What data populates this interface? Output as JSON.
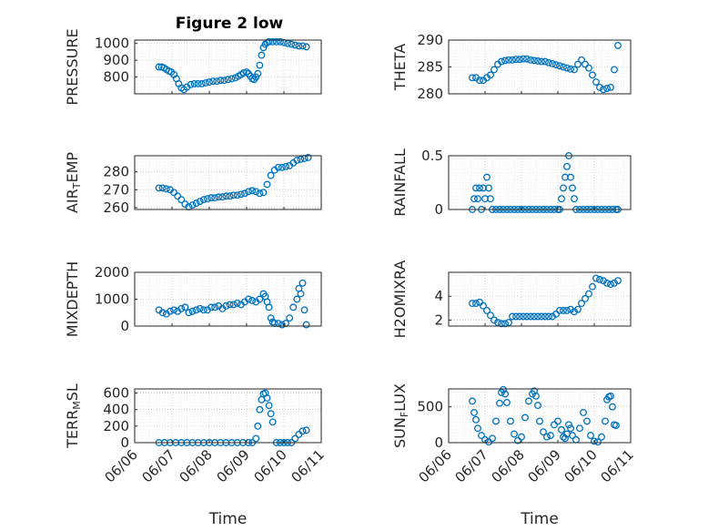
{
  "figure_title": "Figure 2 low",
  "marker_color": "#0072BD",
  "grid": "dotted",
  "chart_data": [
    {
      "type": "scatter",
      "title": "Figure 2 low",
      "ylabel": "PRESSURE",
      "ylim": [
        700,
        1020
      ],
      "yticks": [
        800,
        900,
        1000
      ],
      "xlim": [
        0,
        5
      ],
      "xticks": [
        0,
        1,
        2,
        3,
        4,
        5
      ],
      "xticklabels": [
        "06/06",
        "06/07",
        "06/08",
        "06/09",
        "06/10",
        "06/11"
      ],
      "show_xticklabels": false,
      "x": [
        0.65,
        0.72,
        0.78,
        0.85,
        0.92,
        0.98,
        1.05,
        1.12,
        1.18,
        1.25,
        1.32,
        1.4,
        1.5,
        1.6,
        1.7,
        1.8,
        1.9,
        2.0,
        2.1,
        2.2,
        2.3,
        2.4,
        2.5,
        2.6,
        2.7,
        2.78,
        2.85,
        2.92,
        3.0,
        3.05,
        3.1,
        3.15,
        3.2,
        3.25,
        3.3,
        3.35,
        3.4,
        3.45,
        3.5,
        3.55,
        3.6,
        3.7,
        3.8,
        3.9,
        4.0,
        4.1,
        4.2,
        4.3,
        4.4,
        4.5,
        4.6
      ],
      "y": [
        860,
        860,
        855,
        845,
        835,
        830,
        815,
        790,
        760,
        735,
        725,
        740,
        755,
        760,
        760,
        760,
        765,
        770,
        775,
        775,
        780,
        780,
        785,
        790,
        795,
        805,
        815,
        825,
        830,
        820,
        805,
        790,
        785,
        800,
        820,
        870,
        930,
        975,
        995,
        1005,
        1010,
        1010,
        1010,
        1010,
        1005,
        1000,
        995,
        990,
        985,
        985,
        980
      ]
    },
    {
      "type": "scatter",
      "ylabel": "THETA",
      "ylim": [
        280,
        290
      ],
      "yticks": [
        280,
        285,
        290
      ],
      "xlim": [
        0,
        5
      ],
      "show_xticklabels": false,
      "x": [
        0.65,
        0.75,
        0.85,
        0.95,
        1.05,
        1.15,
        1.25,
        1.35,
        1.45,
        1.55,
        1.65,
        1.75,
        1.85,
        1.95,
        2.05,
        2.15,
        2.25,
        2.35,
        2.45,
        2.55,
        2.65,
        2.75,
        2.85,
        2.95,
        3.05,
        3.15,
        3.25,
        3.35,
        3.45,
        3.55,
        3.65,
        3.75,
        3.85,
        3.95,
        4.05,
        4.15,
        4.25,
        4.35,
        4.45,
        4.55,
        4.65
      ],
      "y": [
        283,
        283,
        282.5,
        282.5,
        283,
        283.5,
        284.5,
        285.5,
        286,
        286.2,
        286.3,
        286.3,
        286.4,
        286.4,
        286.5,
        286.5,
        286.3,
        286.2,
        286.1,
        286,
        286,
        285.8,
        285.6,
        285.4,
        285.2,
        285,
        284.8,
        284.6,
        284.5,
        285.5,
        286.3,
        285.5,
        284.8,
        283.5,
        282.2,
        281.2,
        280.8,
        281,
        281.2,
        284.5,
        289
      ]
    },
    {
      "type": "scatter",
      "ylabel": "AIR_TEMP",
      "ylim": [
        259,
        289
      ],
      "yticks": [
        260,
        270,
        280
      ],
      "xlim": [
        0,
        5
      ],
      "show_xticklabels": false,
      "x": [
        0.65,
        0.75,
        0.85,
        0.95,
        1.05,
        1.15,
        1.25,
        1.35,
        1.45,
        1.55,
        1.65,
        1.75,
        1.85,
        1.95,
        2.05,
        2.15,
        2.25,
        2.35,
        2.45,
        2.55,
        2.65,
        2.75,
        2.85,
        2.95,
        3.05,
        3.15,
        3.25,
        3.35,
        3.45,
        3.55,
        3.65,
        3.75,
        3.85,
        3.95,
        4.05,
        4.15,
        4.25,
        4.35,
        4.45,
        4.55,
        4.65
      ],
      "y": [
        271,
        271,
        270.5,
        270,
        268.5,
        266.5,
        264.5,
        262,
        260.5,
        261.5,
        262.5,
        263.5,
        264.5,
        265,
        265.5,
        265.5,
        266,
        266,
        266.5,
        266.5,
        267,
        267,
        267.5,
        268,
        269,
        269.5,
        269,
        268,
        268.5,
        273,
        278,
        281,
        282.5,
        282.5,
        283,
        283.5,
        285,
        286.5,
        287,
        287.5,
        288
      ]
    },
    {
      "type": "scatter",
      "ylabel": "RAINFALL",
      "ylim": [
        0,
        0.5
      ],
      "yticks": [
        0,
        0.5
      ],
      "xlim": [
        0,
        5
      ],
      "show_xticklabels": false,
      "x": [
        0.65,
        0.7,
        0.75,
        0.8,
        0.85,
        0.9,
        0.95,
        1.0,
        1.05,
        1.1,
        1.15,
        1.2,
        1.3,
        1.4,
        1.5,
        1.6,
        1.7,
        1.8,
        1.9,
        2.0,
        2.1,
        2.2,
        2.3,
        2.4,
        2.5,
        2.6,
        2.7,
        2.8,
        2.9,
        3.0,
        3.05,
        3.1,
        3.15,
        3.2,
        3.25,
        3.3,
        3.35,
        3.4,
        3.45,
        3.5,
        3.6,
        3.7,
        3.8,
        3.9,
        4.0,
        4.1,
        4.2,
        4.3,
        4.4,
        4.5,
        4.6,
        4.65
      ],
      "y": [
        0,
        0.1,
        0.2,
        0.1,
        0.2,
        0,
        0.2,
        0.1,
        0.3,
        0.2,
        0.1,
        0,
        0,
        0,
        0,
        0,
        0,
        0,
        0,
        0,
        0,
        0,
        0,
        0,
        0,
        0,
        0,
        0,
        0,
        0,
        0,
        0.1,
        0.2,
        0.3,
        0.4,
        0.5,
        0.3,
        0.2,
        0.1,
        0,
        0,
        0,
        0,
        0,
        0,
        0,
        0,
        0,
        0,
        0,
        0,
        0
      ]
    },
    {
      "type": "scatter",
      "ylabel": "MIXDEPTH",
      "ylim": [
        0,
        2000
      ],
      "yticks": [
        0,
        1000,
        2000
      ],
      "xlim": [
        0,
        5
      ],
      "show_xticklabels": false,
      "x": [
        0.65,
        0.75,
        0.85,
        0.95,
        1.05,
        1.15,
        1.25,
        1.35,
        1.45,
        1.55,
        1.65,
        1.75,
        1.85,
        1.95,
        2.05,
        2.15,
        2.25,
        2.35,
        2.45,
        2.55,
        2.65,
        2.75,
        2.85,
        2.95,
        3.05,
        3.15,
        3.25,
        3.35,
        3.45,
        3.5,
        3.55,
        3.6,
        3.65,
        3.7,
        3.75,
        3.85,
        3.95,
        4.05,
        4.15,
        4.25,
        4.35,
        4.4,
        4.45,
        4.5,
        4.55,
        4.6
      ],
      "y": [
        600,
        500,
        450,
        550,
        600,
        550,
        650,
        700,
        500,
        550,
        600,
        650,
        600,
        600,
        700,
        700,
        750,
        650,
        750,
        800,
        800,
        850,
        800,
        900,
        1000,
        950,
        900,
        1000,
        1200,
        1100,
        900,
        700,
        300,
        150,
        100,
        100,
        50,
        100,
        300,
        700,
        1000,
        1400,
        1200,
        1600,
        600,
        50
      ]
    },
    {
      "type": "scatter",
      "ylabel": "H2OMIXRA",
      "ylim": [
        1.5,
        6
      ],
      "yticks": [
        2,
        4
      ],
      "xlim": [
        0,
        5
      ],
      "show_xticklabels": false,
      "x": [
        0.65,
        0.75,
        0.85,
        0.95,
        1.05,
        1.15,
        1.25,
        1.35,
        1.45,
        1.55,
        1.65,
        1.75,
        1.85,
        1.95,
        2.05,
        2.15,
        2.25,
        2.35,
        2.45,
        2.55,
        2.65,
        2.75,
        2.85,
        2.95,
        3.05,
        3.15,
        3.25,
        3.35,
        3.45,
        3.55,
        3.65,
        3.75,
        3.85,
        3.95,
        4.05,
        4.15,
        4.25,
        4.35,
        4.45,
        4.55,
        4.65
      ],
      "y": [
        3.4,
        3.4,
        3.5,
        3.2,
        2.8,
        2.4,
        2.0,
        1.8,
        1.7,
        1.7,
        1.8,
        2.3,
        2.3,
        2.3,
        2.3,
        2.3,
        2.3,
        2.3,
        2.3,
        2.3,
        2.3,
        2.3,
        2.3,
        2.5,
        2.8,
        2.8,
        2.8,
        2.9,
        2.7,
        2.9,
        3.4,
        3.8,
        4.2,
        4.8,
        5.5,
        5.4,
        5.3,
        5.1,
        5.0,
        5.1,
        5.3
      ]
    },
    {
      "type": "scatter",
      "ylabel": "TERR_MSL",
      "ylim": [
        0,
        650
      ],
      "yticks": [
        0,
        200,
        400,
        600
      ],
      "xlim": [
        0,
        5
      ],
      "xticks": [
        0,
        1,
        2,
        3,
        4,
        5
      ],
      "xticklabels": [
        "06/06",
        "06/07",
        "06/08",
        "06/09",
        "06/10",
        "06/11"
      ],
      "show_xticklabels": true,
      "xlabel": "Time",
      "x": [
        0.65,
        0.8,
        0.95,
        1.1,
        1.25,
        1.4,
        1.55,
        1.7,
        1.85,
        2.0,
        2.15,
        2.3,
        2.45,
        2.6,
        2.75,
        2.9,
        3.05,
        3.15,
        3.25,
        3.3,
        3.35,
        3.4,
        3.45,
        3.5,
        3.55,
        3.6,
        3.65,
        3.7,
        3.8,
        3.9,
        4.0,
        4.1,
        4.2,
        4.3,
        4.4,
        4.5,
        4.6
      ],
      "y": [
        0,
        0,
        0,
        0,
        0,
        0,
        0,
        0,
        0,
        0,
        0,
        0,
        0,
        0,
        0,
        0,
        0,
        0,
        50,
        200,
        400,
        520,
        590,
        600,
        540,
        450,
        350,
        250,
        0,
        0,
        0,
        0,
        0,
        50,
        100,
        140,
        150
      ]
    },
    {
      "type": "scatter",
      "ylabel": "SUN_FLUX",
      "ylim": [
        0,
        750
      ],
      "yticks": [
        0,
        500
      ],
      "xlim": [
        0,
        5
      ],
      "xticks": [
        0,
        1,
        2,
        3,
        4,
        5
      ],
      "xticklabels": [
        "06/06",
        "06/07",
        "06/08",
        "06/09",
        "06/10",
        "06/11"
      ],
      "show_xticklabels": true,
      "xlabel": "Time",
      "x": [
        0.65,
        0.7,
        0.75,
        0.8,
        0.9,
        1.0,
        1.1,
        1.2,
        1.3,
        1.4,
        1.45,
        1.5,
        1.55,
        1.6,
        1.7,
        1.8,
        1.9,
        2.0,
        2.1,
        2.2,
        2.3,
        2.35,
        2.4,
        2.45,
        2.5,
        2.6,
        2.7,
        2.8,
        2.9,
        3.0,
        3.1,
        3.15,
        3.2,
        3.25,
        3.3,
        3.35,
        3.4,
        3.5,
        3.6,
        3.7,
        3.8,
        3.9,
        4.0,
        4.1,
        4.2,
        4.3,
        4.35,
        4.4,
        4.45,
        4.5,
        4.55,
        4.6
      ],
      "y": [
        580,
        420,
        320,
        200,
        100,
        40,
        10,
        60,
        300,
        550,
        700,
        740,
        680,
        560,
        300,
        120,
        30,
        80,
        350,
        580,
        680,
        720,
        650,
        520,
        300,
        150,
        80,
        100,
        250,
        300,
        180,
        80,
        60,
        120,
        250,
        200,
        100,
        40,
        200,
        420,
        300,
        100,
        20,
        10,
        80,
        300,
        600,
        640,
        650,
        500,
        250,
        240
      ]
    }
  ]
}
